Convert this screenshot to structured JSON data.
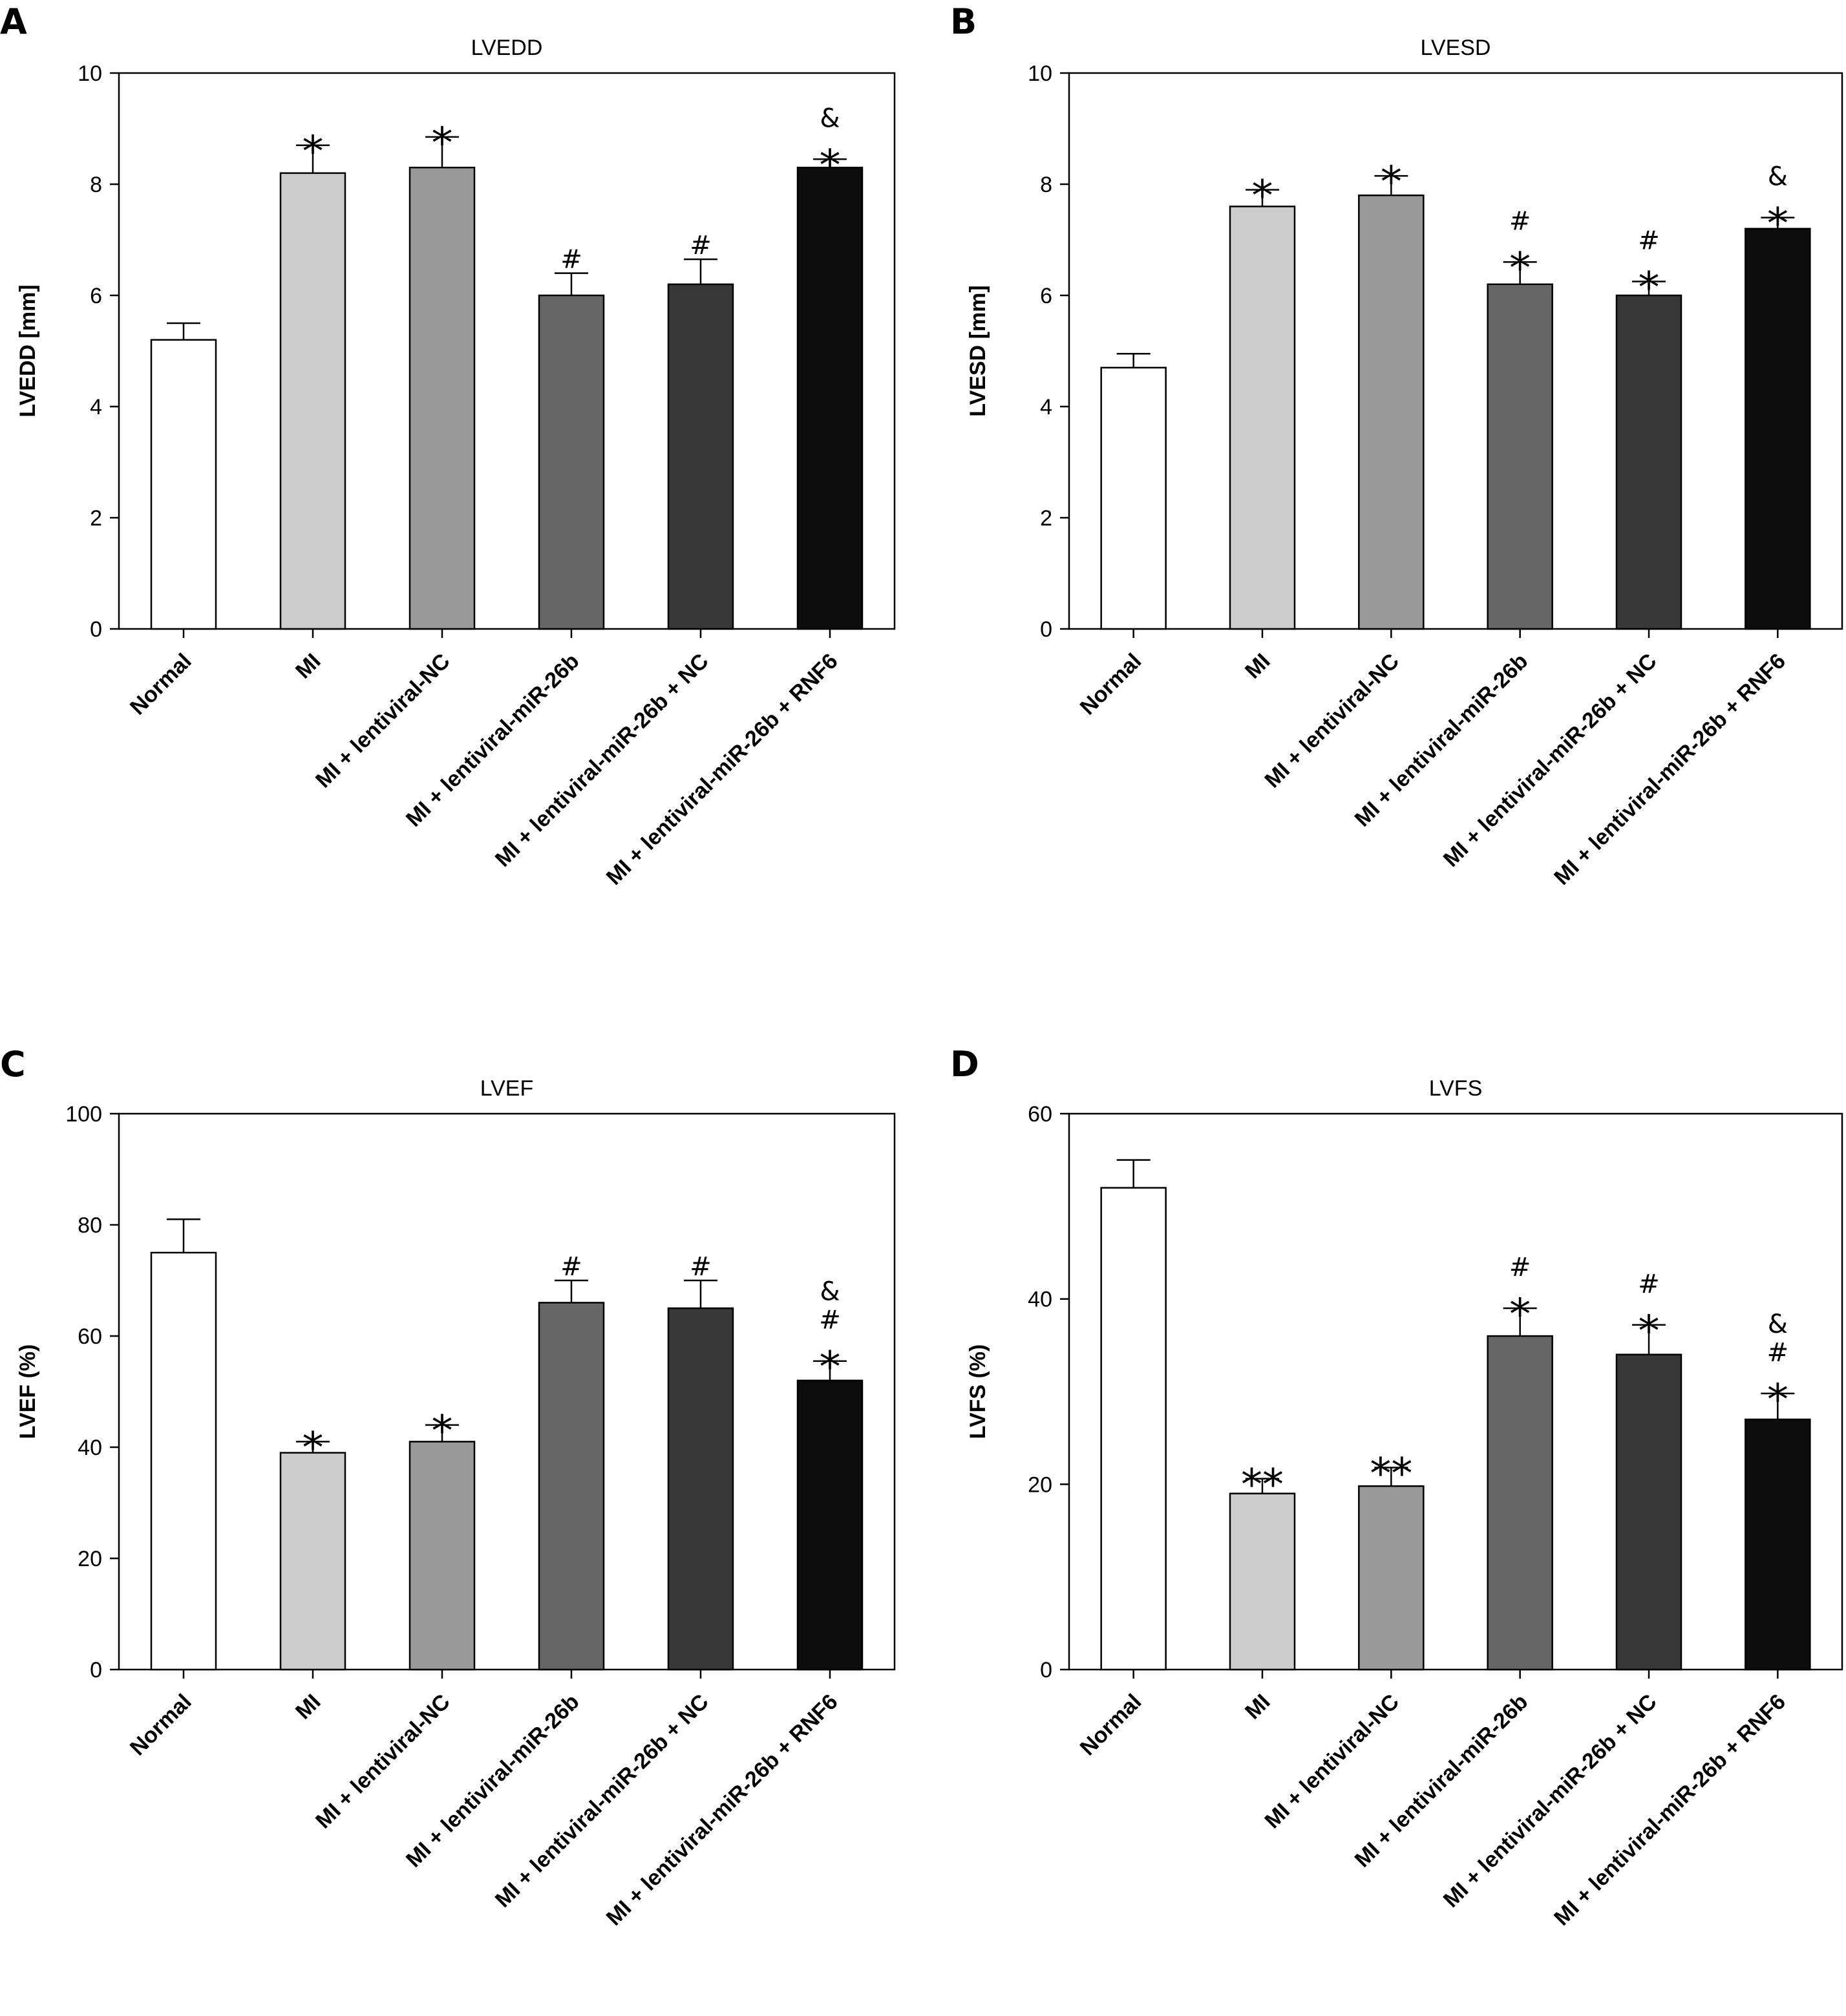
{
  "chart_data": [
    {
      "panel": "A",
      "type": "bar",
      "title": "LVEDD",
      "ylabel": "LVEDD [mm]",
      "ylim": [
        0,
        10
      ],
      "yticks": [
        "0",
        "2",
        "4",
        "6",
        "8",
        "10"
      ],
      "categories": [
        "Normal",
        "MI",
        "MI + lentiviral-NC",
        "MI + lentiviral-miR-26b",
        "MI + lentiviral-miR-26b + NC",
        "MI + lentiviral-miR-26b + RNF6"
      ],
      "values": [
        5.2,
        8.2,
        8.3,
        6.0,
        6.2,
        8.3
      ],
      "errors": [
        0.3,
        0.5,
        0.55,
        0.4,
        0.45,
        0.15
      ],
      "annotations": [
        [],
        [
          "*"
        ],
        [
          "*"
        ],
        [
          "#"
        ],
        [
          "#"
        ],
        [
          "*",
          "&"
        ]
      ],
      "colors": [
        "#ffffff",
        "#cccccc",
        "#999999",
        "#666666",
        "#383838",
        "#0d0d0d"
      ]
    },
    {
      "panel": "B",
      "type": "bar",
      "title": "LVESD",
      "ylabel": "LVESD [mm]",
      "ylim": [
        0,
        10
      ],
      "yticks": [
        "0",
        "2",
        "4",
        "6",
        "8",
        "10"
      ],
      "categories": [
        "Normal",
        "MI",
        "MI + lentiviral-NC",
        "MI + lentiviral-miR-26b",
        "MI + lentiviral-miR-26b + NC",
        "MI + lentiviral-miR-26b + RNF6"
      ],
      "values": [
        4.7,
        7.6,
        7.8,
        6.2,
        6.0,
        7.2
      ],
      "errors": [
        0.25,
        0.3,
        0.35,
        0.4,
        0.25,
        0.2
      ],
      "annotations": [
        [],
        [
          "*"
        ],
        [
          "*"
        ],
        [
          "*",
          "#"
        ],
        [
          "*",
          "#"
        ],
        [
          "*",
          "&"
        ]
      ],
      "colors": [
        "#ffffff",
        "#cccccc",
        "#999999",
        "#666666",
        "#383838",
        "#0d0d0d"
      ]
    },
    {
      "panel": "C",
      "type": "bar",
      "title": "LVEF",
      "ylabel": "LVEF (%)",
      "ylim": [
        0,
        100
      ],
      "yticks": [
        "0",
        "20",
        "40",
        "60",
        "80",
        "100"
      ],
      "categories": [
        "Normal",
        "MI",
        "MI + lentiviral-NC",
        "MI + lentiviral-miR-26b",
        "MI + lentiviral-miR-26b + NC",
        "MI + lentiviral-miR-26b + RNF6"
      ],
      "values": [
        75,
        39,
        41,
        66,
        65,
        52
      ],
      "errors": [
        6,
        2,
        3,
        4,
        5,
        3.5
      ],
      "annotations": [
        [],
        [
          "*"
        ],
        [
          "*"
        ],
        [
          "#"
        ],
        [
          "#"
        ],
        [
          "*",
          "#",
          "&"
        ]
      ],
      "colors": [
        "#ffffff",
        "#cccccc",
        "#999999",
        "#666666",
        "#383838",
        "#0d0d0d"
      ]
    },
    {
      "panel": "D",
      "type": "bar",
      "title": "LVFS",
      "ylabel": "LVFS (%)",
      "ylim": [
        0,
        60
      ],
      "yticks": [
        "0",
        "20",
        "40",
        "60"
      ],
      "categories": [
        "Normal",
        "MI",
        "MI + lentiviral-NC",
        "MI + lentiviral-miR-26b",
        "MI + lentiviral-miR-26b + NC",
        "MI + lentiviral-miR-26b + RNF6"
      ],
      "values": [
        52,
        19,
        19.8,
        36,
        34,
        27
      ],
      "errors": [
        3,
        1.6,
        2,
        3,
        3.2,
        2.8
      ],
      "annotations": [
        [],
        [
          "**"
        ],
        [
          "**"
        ],
        [
          "*",
          "#"
        ],
        [
          "*",
          "#"
        ],
        [
          "*",
          "#",
          "&"
        ]
      ],
      "colors": [
        "#ffffff",
        "#cccccc",
        "#999999",
        "#666666",
        "#383838",
        "#0d0d0d"
      ]
    }
  ]
}
